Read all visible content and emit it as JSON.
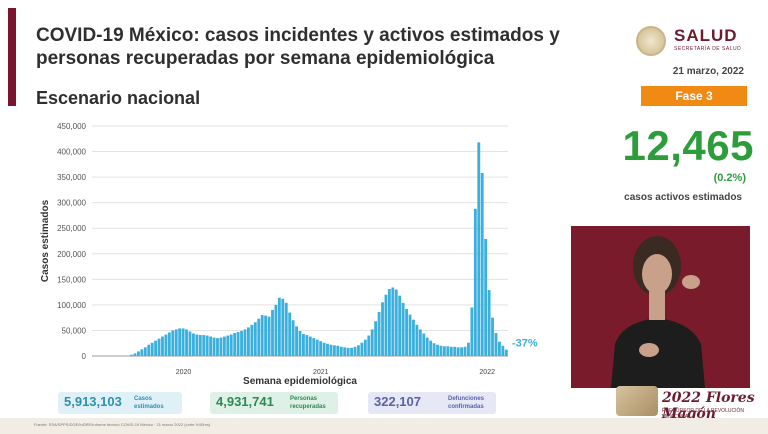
{
  "header": {
    "title": "COVID-19 México: casos incidentes y activos estimados y personas recuperadas por semana epidemiológica",
    "subtitle": "Escenario nacional",
    "date": "21 marzo, 2022"
  },
  "logo": {
    "name": "SALUD",
    "sub": "SECRETARÍA DE SALUD"
  },
  "phase": {
    "label": "Fase 3"
  },
  "active_cases": {
    "value": "12,465",
    "pct": "(0.2%)",
    "label": "casos activos estimados"
  },
  "chart_data": {
    "type": "bar",
    "title": "",
    "xlabel": "Semana epidemiológica",
    "ylabel": "Casos estimados",
    "ylim": [
      0,
      450000
    ],
    "yticks": [
      "0",
      "50,000",
      "100,000",
      "150,000",
      "200,000",
      "250,000",
      "300,000",
      "350,000",
      "400,000",
      "450,000"
    ],
    "year_labels": [
      "2020",
      "2021",
      "2022"
    ],
    "annotation": "-37%",
    "bar_color": "#3bb0dd",
    "grid": true,
    "values": [
      0,
      0,
      0,
      0,
      0,
      0,
      0,
      0,
      0,
      0,
      1000,
      2500,
      5000,
      9000,
      13000,
      17000,
      22000,
      26000,
      30000,
      34000,
      38000,
      42000,
      46000,
      50000,
      52000,
      54000,
      54000,
      52000,
      48000,
      44000,
      42000,
      41000,
      41000,
      40000,
      38000,
      36000,
      35000,
      36000,
      38000,
      40000,
      42000,
      45000,
      47000,
      49000,
      52000,
      56000,
      61000,
      66000,
      73000,
      80000,
      79000,
      77000,
      90000,
      100000,
      114000,
      112000,
      104000,
      85000,
      70000,
      58000,
      49000,
      43000,
      41000,
      38000,
      35000,
      32000,
      29000,
      26000,
      24000,
      22000,
      21000,
      20000,
      18000,
      17000,
      16000,
      16000,
      18000,
      21000,
      26000,
      32000,
      40000,
      52000,
      68000,
      86000,
      105000,
      120000,
      131000,
      134000,
      130000,
      118000,
      104000,
      92000,
      81000,
      71000,
      61000,
      52000,
      44000,
      36000,
      30000,
      25000,
      22000,
      20000,
      19000,
      19000,
      18000,
      18000,
      17000,
      17000,
      18000,
      26000,
      95000,
      288000,
      418000,
      358000,
      229000,
      129000,
      75000,
      45000,
      28000,
      20000,
      12465
    ]
  },
  "stats": {
    "cases": {
      "value": "5,913,103",
      "label_1": "Casos",
      "label_2": "estimados"
    },
    "recovered": {
      "value": "4,931,741",
      "label_1": "Personas",
      "label_2": "recuperadas"
    },
    "deaths": {
      "value": "322,107",
      "label_1": "Defunciones",
      "label_2": "confirmadas"
    }
  },
  "banner": {
    "text": "2022 Flores Magón",
    "small": "PRECURSOR DE LA REVOLUCIÓN MEXICANA"
  },
  "footer": {
    "source": "Fuente: SSA/SPPS/DGE/InDRE/Informe técnico COVID-19 México · 21 marzo 2022 (corte 9:00hrs)"
  }
}
